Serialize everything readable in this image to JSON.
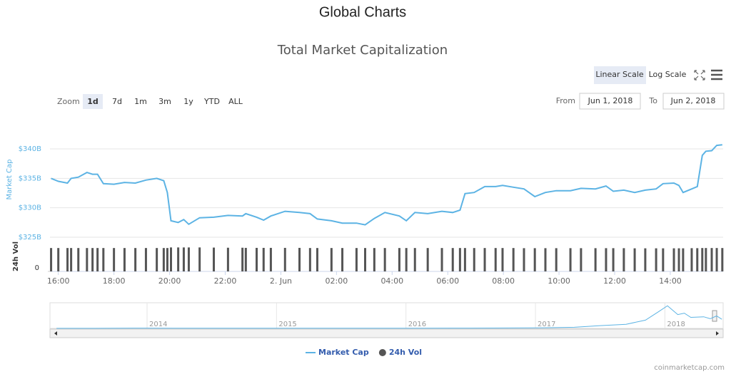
{
  "header": {
    "title": "Global Charts"
  },
  "controls": {
    "scale_buttons": [
      "Linear Scale",
      "Log Scale"
    ],
    "zoom_label": "Zoom",
    "zoom_buttons": [
      "1d",
      "7d",
      "1m",
      "3m",
      "1y",
      "YTD",
      "ALL"
    ],
    "zoom_selected": 0,
    "from_label": "From",
    "from_value": "Jun 1, 2018",
    "to_label": "To",
    "to_value": "Jun 2, 2018"
  },
  "chart_data": [
    {
      "type": "line",
      "title": "Total Market Capitalization",
      "y_label": "Market Cap",
      "y2_label": "24h Vol",
      "grid": true,
      "x": [
        15.74,
        16.0,
        16.33,
        16.46,
        16.72,
        17.03,
        17.23,
        17.41,
        17.62,
        18.0,
        18.38,
        18.77,
        19.15,
        19.54,
        19.79,
        19.92,
        20.05,
        20.31,
        20.51,
        20.69,
        21.08,
        21.59,
        22.1,
        22.62,
        22.74,
        23.13,
        23.38,
        23.64,
        24.15,
        24.67,
        25.05,
        25.31,
        25.82,
        26.21,
        26.72,
        27.03,
        27.36,
        27.74,
        28.26,
        28.51,
        28.82,
        29.28,
        29.79,
        30.18,
        30.44,
        30.62,
        30.95,
        31.33,
        31.72,
        31.97,
        32.36,
        32.74,
        33.13,
        33.51,
        33.9,
        34.41,
        34.79,
        35.31,
        35.69,
        35.95,
        36.33,
        36.72,
        37.1,
        37.49,
        37.74,
        38.13,
        38.31,
        38.46,
        38.77,
        38.97,
        39.15,
        39.28,
        39.49,
        39.67,
        39.87
      ],
      "series": [
        {
          "name": "Market Cap",
          "type": "line",
          "color": "#5cb3e4",
          "values": [
            335.0,
            334.5,
            334.2,
            335.0,
            335.2,
            336.0,
            335.7,
            335.7,
            334.1,
            334.0,
            334.3,
            334.2,
            334.7,
            335.0,
            334.6,
            332.6,
            327.8,
            327.5,
            328.0,
            327.2,
            328.3,
            328.4,
            328.7,
            328.6,
            329.0,
            328.4,
            327.9,
            328.6,
            329.4,
            329.2,
            329.0,
            328.1,
            327.8,
            327.4,
            327.4,
            327.1,
            328.2,
            329.2,
            328.6,
            327.8,
            329.2,
            329.0,
            329.4,
            329.2,
            329.6,
            332.4,
            332.6,
            333.6,
            333.6,
            333.8,
            333.5,
            333.2,
            331.9,
            332.6,
            332.9,
            332.9,
            333.3,
            333.2,
            333.7,
            332.8,
            333.0,
            332.6,
            333.0,
            333.2,
            334.1,
            334.2,
            333.8,
            332.6,
            333.2,
            333.6,
            338.9,
            339.6,
            339.7,
            340.6,
            340.7
          ]
        },
        {
          "name": "24h Vol",
          "type": "bar",
          "axis": "y2",
          "color": "#555555",
          "values": [
            16.0,
            16.0,
            16.0,
            16.0,
            16.0,
            16.0,
            16.0,
            16.0,
            16.0,
            16.0,
            16.0,
            16.0,
            16.0,
            16.0,
            16.0,
            16.0,
            16.4,
            16.4,
            16.4,
            16.4,
            16.4,
            16.3,
            16.2,
            16.2,
            16.1,
            16.1,
            16.1,
            16.1,
            16.1,
            16.1,
            16.0,
            16.0,
            16.0,
            16.0,
            16.0,
            16.0,
            16.0,
            16.0,
            16.0,
            16.0,
            16.0,
            16.0,
            16.0,
            16.0,
            16.0,
            16.0,
            16.0,
            16.0,
            16.0,
            16.0,
            16.0,
            15.9,
            15.9,
            15.9,
            15.9,
            15.9,
            15.9,
            15.9,
            15.9,
            15.9,
            15.9,
            15.8,
            15.8,
            15.8,
            15.8,
            15.8,
            15.8,
            15.8,
            15.9,
            15.9,
            16.0,
            16.0,
            16.0,
            16.0,
            16.0
          ]
        }
      ],
      "xlim": [
        15.7,
        39.9
      ],
      "xticks": [
        {
          "value": 16,
          "label": "16:00"
        },
        {
          "value": 18,
          "label": "18:00"
        },
        {
          "value": 20,
          "label": "20:00"
        },
        {
          "value": 22,
          "label": "22:00"
        },
        {
          "value": 24,
          "label": "2. Jun"
        },
        {
          "value": 26,
          "label": "02:00"
        },
        {
          "value": 28,
          "label": "04:00"
        },
        {
          "value": 30,
          "label": "06:00"
        },
        {
          "value": 32,
          "label": "08:00"
        },
        {
          "value": 34,
          "label": "10:00"
        },
        {
          "value": 36,
          "label": "12:00"
        },
        {
          "value": 38,
          "label": "14:00"
        }
      ],
      "ylim": [
        325,
        342
      ],
      "yticks": [
        {
          "value": 325,
          "label": "$325B"
        },
        {
          "value": 330,
          "label": "$330B"
        },
        {
          "value": 335,
          "label": "$335B"
        },
        {
          "value": 340,
          "label": "$340B"
        }
      ],
      "y2lim": [
        0,
        19
      ],
      "y2ticks": [
        0
      ],
      "credit": "coinmarketcap.com"
    },
    {
      "type": "line",
      "color": "#5cb3e4",
      "x": [
        2013.3,
        2013.6,
        2013.9,
        2014.0,
        2014.2,
        2014.5,
        2015.0,
        2015.5,
        2016.0,
        2016.5,
        2017.0,
        2017.3,
        2017.5,
        2017.7,
        2017.85,
        2017.95,
        2018.02,
        2018.1,
        2018.15,
        2018.2,
        2018.3,
        2018.35,
        2018.4,
        2018.44
      ],
      "values": [
        1.5,
        2,
        10,
        11,
        6,
        8,
        5,
        4,
        7,
        10,
        18,
        40,
        100,
        150,
        300,
        600,
        820,
        500,
        550,
        400,
        420,
        350,
        450,
        330
      ],
      "xlim": [
        2013.25,
        2018.45
      ],
      "ylim": [
        0,
        850
      ],
      "xticks": [
        2014,
        2015,
        2016,
        2017,
        2018
      ]
    }
  ]
}
